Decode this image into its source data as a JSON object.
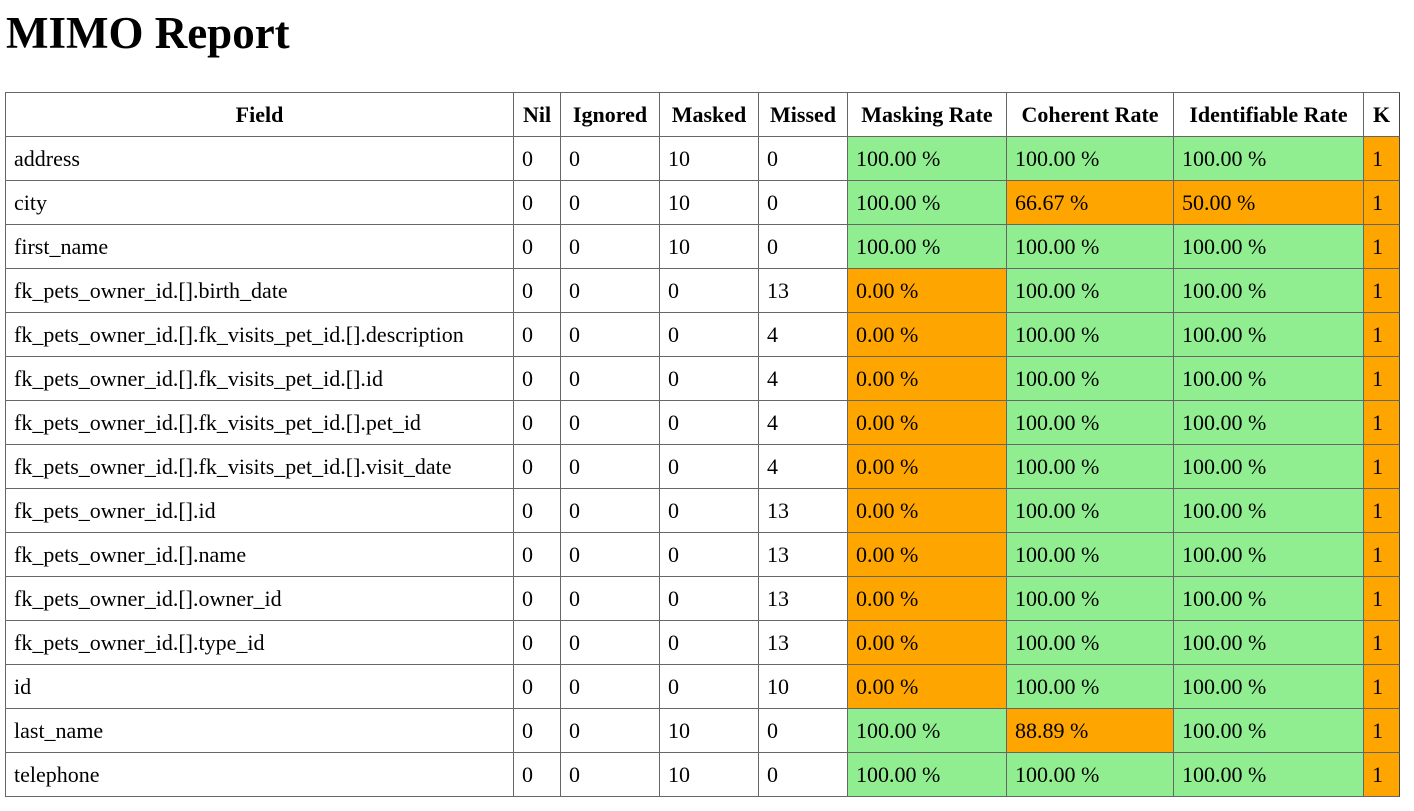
{
  "page_title": "MIMO Report",
  "colors": {
    "good": "#90ee90",
    "bad": "#ffa500"
  },
  "table": {
    "headers": [
      "Field",
      "Nil",
      "Ignored",
      "Masked",
      "Missed",
      "Masking Rate",
      "Coherent Rate",
      "Identifiable Rate",
      "K"
    ],
    "rows": [
      {
        "field": "address",
        "nil": "0",
        "ignored": "0",
        "masked": "10",
        "missed": "0",
        "masking_rate": "100.00 %",
        "masking_status": "good",
        "coherent_rate": "100.00 %",
        "coherent_status": "good",
        "identifiable_rate": "100.00 %",
        "identifiable_status": "good",
        "k": "1",
        "k_status": "bad"
      },
      {
        "field": "city",
        "nil": "0",
        "ignored": "0",
        "masked": "10",
        "missed": "0",
        "masking_rate": "100.00 %",
        "masking_status": "good",
        "coherent_rate": "66.67 %",
        "coherent_status": "bad",
        "identifiable_rate": "50.00 %",
        "identifiable_status": "bad",
        "k": "1",
        "k_status": "bad"
      },
      {
        "field": "first_name",
        "nil": "0",
        "ignored": "0",
        "masked": "10",
        "missed": "0",
        "masking_rate": "100.00 %",
        "masking_status": "good",
        "coherent_rate": "100.00 %",
        "coherent_status": "good",
        "identifiable_rate": "100.00 %",
        "identifiable_status": "good",
        "k": "1",
        "k_status": "bad"
      },
      {
        "field": "fk_pets_owner_id.[].birth_date",
        "nil": "0",
        "ignored": "0",
        "masked": "0",
        "missed": "13",
        "masking_rate": "0.00 %",
        "masking_status": "bad",
        "coherent_rate": "100.00 %",
        "coherent_status": "good",
        "identifiable_rate": "100.00 %",
        "identifiable_status": "good",
        "k": "1",
        "k_status": "bad"
      },
      {
        "field": "fk_pets_owner_id.[].fk_visits_pet_id.[].description",
        "nil": "0",
        "ignored": "0",
        "masked": "0",
        "missed": "4",
        "masking_rate": "0.00 %",
        "masking_status": "bad",
        "coherent_rate": "100.00 %",
        "coherent_status": "good",
        "identifiable_rate": "100.00 %",
        "identifiable_status": "good",
        "k": "1",
        "k_status": "bad"
      },
      {
        "field": "fk_pets_owner_id.[].fk_visits_pet_id.[].id",
        "nil": "0",
        "ignored": "0",
        "masked": "0",
        "missed": "4",
        "masking_rate": "0.00 %",
        "masking_status": "bad",
        "coherent_rate": "100.00 %",
        "coherent_status": "good",
        "identifiable_rate": "100.00 %",
        "identifiable_status": "good",
        "k": "1",
        "k_status": "bad"
      },
      {
        "field": "fk_pets_owner_id.[].fk_visits_pet_id.[].pet_id",
        "nil": "0",
        "ignored": "0",
        "masked": "0",
        "missed": "4",
        "masking_rate": "0.00 %",
        "masking_status": "bad",
        "coherent_rate": "100.00 %",
        "coherent_status": "good",
        "identifiable_rate": "100.00 %",
        "identifiable_status": "good",
        "k": "1",
        "k_status": "bad"
      },
      {
        "field": "fk_pets_owner_id.[].fk_visits_pet_id.[].visit_date",
        "nil": "0",
        "ignored": "0",
        "masked": "0",
        "missed": "4",
        "masking_rate": "0.00 %",
        "masking_status": "bad",
        "coherent_rate": "100.00 %",
        "coherent_status": "good",
        "identifiable_rate": "100.00 %",
        "identifiable_status": "good",
        "k": "1",
        "k_status": "bad"
      },
      {
        "field": "fk_pets_owner_id.[].id",
        "nil": "0",
        "ignored": "0",
        "masked": "0",
        "missed": "13",
        "masking_rate": "0.00 %",
        "masking_status": "bad",
        "coherent_rate": "100.00 %",
        "coherent_status": "good",
        "identifiable_rate": "100.00 %",
        "identifiable_status": "good",
        "k": "1",
        "k_status": "bad"
      },
      {
        "field": "fk_pets_owner_id.[].name",
        "nil": "0",
        "ignored": "0",
        "masked": "0",
        "missed": "13",
        "masking_rate": "0.00 %",
        "masking_status": "bad",
        "coherent_rate": "100.00 %",
        "coherent_status": "good",
        "identifiable_rate": "100.00 %",
        "identifiable_status": "good",
        "k": "1",
        "k_status": "bad"
      },
      {
        "field": "fk_pets_owner_id.[].owner_id",
        "nil": "0",
        "ignored": "0",
        "masked": "0",
        "missed": "13",
        "masking_rate": "0.00 %",
        "masking_status": "bad",
        "coherent_rate": "100.00 %",
        "coherent_status": "good",
        "identifiable_rate": "100.00 %",
        "identifiable_status": "good",
        "k": "1",
        "k_status": "bad"
      },
      {
        "field": "fk_pets_owner_id.[].type_id",
        "nil": "0",
        "ignored": "0",
        "masked": "0",
        "missed": "13",
        "masking_rate": "0.00 %",
        "masking_status": "bad",
        "coherent_rate": "100.00 %",
        "coherent_status": "good",
        "identifiable_rate": "100.00 %",
        "identifiable_status": "good",
        "k": "1",
        "k_status": "bad"
      },
      {
        "field": "id",
        "nil": "0",
        "ignored": "0",
        "masked": "0",
        "missed": "10",
        "masking_rate": "0.00 %",
        "masking_status": "bad",
        "coherent_rate": "100.00 %",
        "coherent_status": "good",
        "identifiable_rate": "100.00 %",
        "identifiable_status": "good",
        "k": "1",
        "k_status": "bad"
      },
      {
        "field": "last_name",
        "nil": "0",
        "ignored": "0",
        "masked": "10",
        "missed": "0",
        "masking_rate": "100.00 %",
        "masking_status": "good",
        "coherent_rate": "88.89 %",
        "coherent_status": "bad",
        "identifiable_rate": "100.00 %",
        "identifiable_status": "good",
        "k": "1",
        "k_status": "bad"
      },
      {
        "field": "telephone",
        "nil": "0",
        "ignored": "0",
        "masked": "10",
        "missed": "0",
        "masking_rate": "100.00 %",
        "masking_status": "good",
        "coherent_rate": "100.00 %",
        "coherent_status": "good",
        "identifiable_rate": "100.00 %",
        "identifiable_status": "good",
        "k": "1",
        "k_status": "bad"
      }
    ]
  }
}
